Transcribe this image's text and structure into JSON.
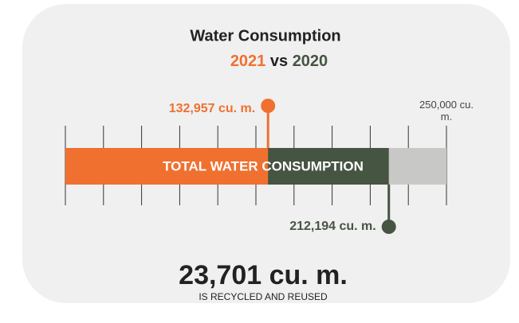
{
  "chart_data": {
    "type": "bullet",
    "title": "Water Consumption",
    "subtitle_join": "vs",
    "bar_label": "TOTAL WATER CONSUMPTION",
    "series": [
      {
        "name": "2021",
        "color": "#f07030",
        "values": [
          132957
        ],
        "value_labels": [
          "132,957 cu. m."
        ]
      },
      {
        "name": "2020",
        "color": "#465442",
        "values": [
          212194
        ],
        "value_labels": [
          "212,194 cu. m."
        ]
      }
    ],
    "range_color": "#c8c8c7",
    "xlim": [
      0,
      250000
    ],
    "xticks": [
      0,
      25000,
      50000,
      75000,
      100000,
      125000,
      150000,
      175000,
      200000,
      225000,
      {
        "value": 250000,
        "label": "250,000 cu. m."
      }
    ],
    "recycled": {
      "value_label": "23,701 cu. m.",
      "caption": "IS RECYCLED AND REUSED"
    }
  }
}
